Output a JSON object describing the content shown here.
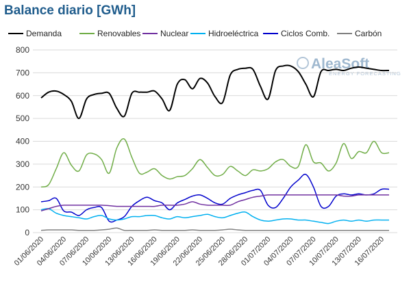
{
  "title": "Balance diario [GWh]",
  "watermark": {
    "main": "AleaSoft",
    "sub": "ENERGY FORECASTING"
  },
  "chart_data": {
    "type": "line",
    "title": "Balance diario [GWh]",
    "xlabel": "",
    "ylabel": "",
    "ylim": [
      0,
      800
    ],
    "yticks": [
      0,
      100,
      200,
      300,
      400,
      500,
      600,
      700,
      800
    ],
    "grid": {
      "y": true,
      "x": false
    },
    "legend_position": "top",
    "x": [
      "01/06/2020",
      "02/06/2020",
      "03/06/2020",
      "04/06/2020",
      "05/06/2020",
      "06/06/2020",
      "07/06/2020",
      "08/06/2020",
      "09/06/2020",
      "10/06/2020",
      "11/06/2020",
      "12/06/2020",
      "13/06/2020",
      "14/06/2020",
      "15/06/2020",
      "16/06/2020",
      "17/06/2020",
      "18/06/2020",
      "19/06/2020",
      "20/06/2020",
      "21/06/2020",
      "22/06/2020",
      "23/06/2020",
      "24/06/2020",
      "25/06/2020",
      "26/06/2020",
      "27/06/2020",
      "28/06/2020",
      "29/06/2020",
      "30/06/2020",
      "01/07/2020",
      "02/07/2020",
      "03/07/2020",
      "04/07/2020",
      "05/07/2020",
      "06/07/2020",
      "07/07/2020",
      "08/07/2020",
      "09/07/2020",
      "10/07/2020",
      "11/07/2020",
      "12/07/2020",
      "13/07/2020",
      "14/07/2020",
      "15/07/2020",
      "16/07/2020",
      "17/07/2020"
    ],
    "x_tick_labels": [
      "01/06/2020",
      "04/06/2020",
      "07/06/2020",
      "10/06/2020",
      "13/06/2020",
      "16/06/2020",
      "19/06/2020",
      "22/06/2020",
      "25/06/2020",
      "28/06/2020",
      "01/07/2020",
      "04/07/2020",
      "07/07/2020",
      "10/07/2020",
      "13/07/2020",
      "16/07/2020"
    ],
    "series": [
      {
        "name": "Demanda",
        "color": "#000000",
        "values": [
          590,
          615,
          620,
          605,
          575,
          500,
          585,
          605,
          610,
          610,
          545,
          510,
          610,
          615,
          615,
          620,
          585,
          535,
          650,
          670,
          630,
          675,
          655,
          595,
          570,
          690,
          715,
          720,
          715,
          640,
          585,
          710,
          730,
          730,
          705,
          650,
          595,
          705,
          710,
          715,
          710,
          720,
          725,
          720,
          715,
          710,
          710
        ]
      },
      {
        "name": "Renovables",
        "color": "#70ad47",
        "values": [
          200,
          210,
          280,
          350,
          295,
          270,
          340,
          345,
          320,
          260,
          370,
          410,
          330,
          260,
          265,
          280,
          250,
          235,
          245,
          250,
          280,
          320,
          285,
          250,
          255,
          290,
          270,
          250,
          275,
          270,
          280,
          310,
          320,
          290,
          290,
          385,
          310,
          305,
          270,
          305,
          390,
          325,
          355,
          350,
          400,
          350,
          350
        ]
      },
      {
        "name": "Nuclear",
        "color": "#7030a0",
        "values": [
          95,
          105,
          115,
          120,
          120,
          120,
          120,
          120,
          120,
          118,
          115,
          115,
          115,
          115,
          115,
          115,
          120,
          120,
          120,
          125,
          135,
          125,
          120,
          120,
          120,
          120,
          135,
          145,
          155,
          160,
          165,
          165,
          165,
          165,
          165,
          165,
          165,
          165,
          165,
          165,
          160,
          160,
          165,
          165,
          165,
          165,
          165
        ]
      },
      {
        "name": "Hidroeléctrica",
        "color": "#00b0f0",
        "values": [
          100,
          105,
          85,
          75,
          70,
          65,
          60,
          70,
          75,
          60,
          55,
          60,
          70,
          70,
          75,
          75,
          65,
          60,
          70,
          65,
          70,
          75,
          80,
          70,
          65,
          75,
          85,
          90,
          70,
          55,
          50,
          55,
          60,
          60,
          55,
          55,
          50,
          45,
          40,
          50,
          55,
          50,
          55,
          50,
          55,
          55,
          55
        ]
      },
      {
        "name": "Ciclos Comb.",
        "color": "#0000cc",
        "values": [
          135,
          140,
          150,
          95,
          90,
          75,
          100,
          110,
          110,
          50,
          55,
          70,
          115,
          140,
          155,
          140,
          130,
          100,
          130,
          145,
          160,
          165,
          150,
          130,
          125,
          150,
          165,
          175,
          185,
          185,
          120,
          110,
          150,
          200,
          230,
          255,
          200,
          115,
          115,
          160,
          170,
          165,
          170,
          165,
          170,
          190,
          190
        ]
      },
      {
        "name": "Carbón",
        "color": "#808080",
        "values": [
          10,
          12,
          12,
          12,
          12,
          10,
          10,
          10,
          12,
          15,
          20,
          10,
          10,
          10,
          10,
          12,
          10,
          10,
          10,
          10,
          12,
          10,
          10,
          10,
          12,
          15,
          12,
          10,
          10,
          10,
          10,
          10,
          10,
          10,
          10,
          10,
          10,
          10,
          10,
          10,
          10,
          10,
          10,
          10,
          10,
          10,
          10
        ]
      }
    ]
  }
}
